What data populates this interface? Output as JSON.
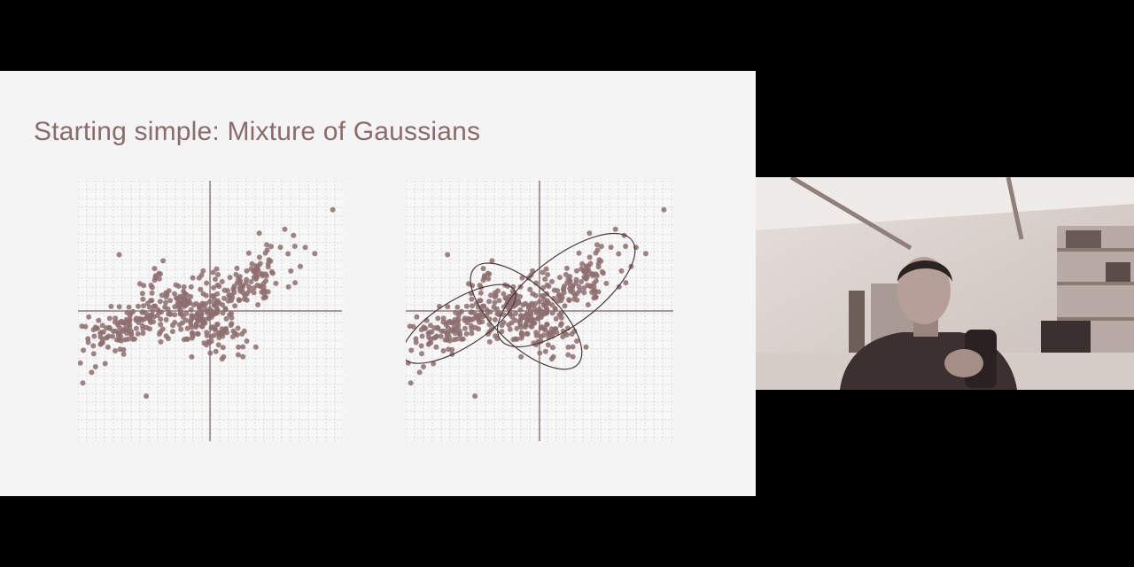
{
  "slide": {
    "title": "Starting simple: Mixture of Gaussians"
  },
  "colors": {
    "background": "#000000",
    "slide_bg": "#f4f4f4",
    "title": "#8a6c6c",
    "grid": "#c9c4c4",
    "axis": "#7a6262",
    "point": "#8e6f6f",
    "ellipse": "#4a3a3a"
  },
  "plots": [
    {
      "name": "scatter-plot-left",
      "show_ellipses": false,
      "grid": true
    },
    {
      "name": "scatter-plot-right",
      "show_ellipses": true,
      "grid": true,
      "components": 3
    }
  ],
  "webcam": {
    "icon": "person-video-feed"
  }
}
